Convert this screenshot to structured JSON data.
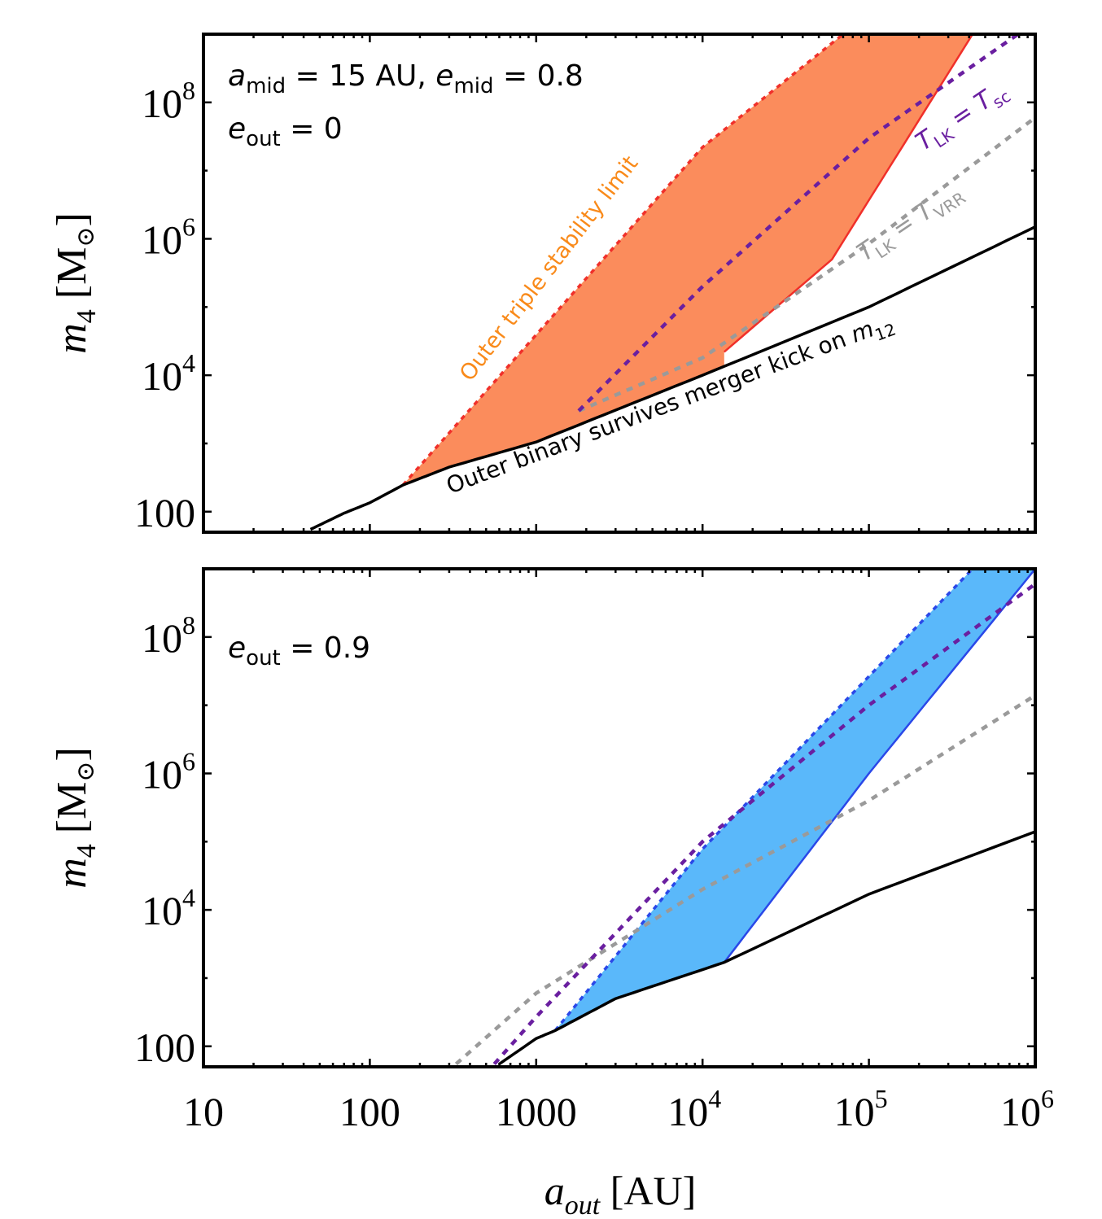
{
  "chart_data": [
    {
      "type": "area",
      "panel": "top",
      "xscale": "log",
      "yscale": "log",
      "xlim": [
        10,
        1000000
      ],
      "ylim": [
        50,
        1000000000
      ],
      "xlabel": "",
      "ylabel": "",
      "annotation_params": [
        {
          "sym": "a",
          "sub": "mid",
          "rest": " = 15 AU, "
        },
        {
          "sym": "e",
          "sub": "mid",
          "rest": " = 0.8"
        }
      ],
      "annotation_eout": {
        "sym": "e",
        "sub": "out",
        "rest": " = 0"
      },
      "curves": {
        "kick": {
          "name": "Outer binary survives merger kick on m12",
          "points": [
            [
              44,
              55
            ],
            [
              70,
              95
            ],
            [
              100,
              135
            ],
            [
              158,
              245
            ],
            [
              300,
              450
            ],
            [
              1000,
              1050
            ],
            [
              10000,
              10000
            ],
            [
              100000,
              100000
            ],
            [
              1000000,
              1500000
            ]
          ]
        },
        "stability": {
          "name": "Outer triple stability limit",
          "points": [
            [
              158,
              245
            ],
            [
              10000,
              22000000
            ],
            [
              70000,
              1000000000
            ]
          ]
        },
        "tlk_tsc": {
          "name": "T_LK = T_sc",
          "points": [
            [
              1800,
              3000
            ],
            [
              10000,
              200000
            ],
            [
              100000,
              30000000
            ],
            [
              1000000,
              1500000000
            ]
          ]
        },
        "tlk_tvrr": {
          "name": "T_LK = T_VRR",
          "points": [
            [
              1800,
              3000
            ],
            [
              10000,
              18000
            ],
            [
              100000,
              850000
            ],
            [
              1000000,
              60000000
            ]
          ]
        },
        "region_edge": {
          "points": [
            [
              13500,
              22000
            ],
            [
              60000,
              500000
            ],
            [
              420000,
              1000000000
            ]
          ]
        }
      },
      "labels": {
        "stability": "Outer triple stability limit",
        "kick_prefix": "Outer binary survives merger kick on ",
        "kick_sym": "m",
        "kick_sub": "12",
        "tsc": {
          "sym": "T",
          "sub": "LK",
          "eq": " = ",
          "sym2": "T",
          "sub2": "sc"
        },
        "tvrr": {
          "sym": "T",
          "sub": "LK",
          "eq": " = ",
          "sym2": "T",
          "sub2": "VRR"
        }
      }
    },
    {
      "type": "area",
      "panel": "bottom",
      "xscale": "log",
      "yscale": "log",
      "xlim": [
        10,
        1000000
      ],
      "ylim": [
        50,
        1000000000
      ],
      "annotation_eout": {
        "sym": "e",
        "sub": "out",
        "rest": " = 0.9"
      },
      "curves": {
        "kick": {
          "points": [
            [
              600,
              55
            ],
            [
              1000,
              130
            ],
            [
              1300,
              170
            ],
            [
              3000,
              500
            ],
            [
              13500,
              1700
            ],
            [
              100000,
              17000
            ],
            [
              1000000,
              140000
            ]
          ]
        },
        "stability": {
          "points": [
            [
              1300,
              170
            ],
            [
              10000,
              78000
            ],
            [
              420000,
              1000000000
            ]
          ]
        },
        "tlk_tsc": {
          "points": [
            [
              560,
              55
            ],
            [
              1000,
              270
            ],
            [
              10000,
              100000
            ],
            [
              100000,
              10000000
            ],
            [
              1000000,
              600000000
            ]
          ]
        },
        "tlk_tvrr": {
          "points": [
            [
              330,
              55
            ],
            [
              1000,
              600
            ],
            [
              10000,
              20000
            ],
            [
              100000,
              400000
            ],
            [
              1000000,
              14000000
            ]
          ]
        },
        "region_edge": {
          "points": [
            [
              13500,
              1700
            ],
            [
              100000,
              1000000
            ],
            [
              1000000,
              1000000000
            ]
          ]
        }
      }
    }
  ],
  "axes": {
    "x_ticks": [
      {
        "value": 10,
        "base": "10",
        "exp": ""
      },
      {
        "value": 100,
        "base": "100",
        "exp": ""
      },
      {
        "value": 1000,
        "base": "1000",
        "exp": ""
      },
      {
        "value": 10000,
        "base": "10",
        "exp": "4"
      },
      {
        "value": 100000,
        "base": "10",
        "exp": "5"
      },
      {
        "value": 1000000,
        "base": "10",
        "exp": "6"
      }
    ],
    "y_ticks": [
      {
        "value": 100,
        "base": "100",
        "exp": ""
      },
      {
        "value": 10000,
        "base": "10",
        "exp": "4"
      },
      {
        "value": 1000000,
        "base": "10",
        "exp": "6"
      },
      {
        "value": 100000000,
        "base": "10",
        "exp": "8"
      }
    ],
    "ylabel": {
      "sym": "m",
      "sub": "4",
      "unit": " [M",
      "unit_sub": "⊙",
      "close": "]"
    },
    "xlabel": {
      "sym": "a",
      "sub": "out",
      "unit": " [AU]"
    }
  },
  "colors": {
    "top_fill": "#fb8c5c",
    "top_edge": "#f0302a",
    "top_stability": "#f0302a",
    "bottom_fill": "#5ab8fa",
    "bottom_edge": "#2a48e8",
    "bottom_stability": "#2a48e8",
    "tsc": "#6a1fa0",
    "tvrr": "#9a9a9a",
    "kick": "#000000",
    "stability_label": "#f98a1a",
    "tsc_label": "#6a1fa0",
    "tvrr_label": "#9a9a9a"
  }
}
